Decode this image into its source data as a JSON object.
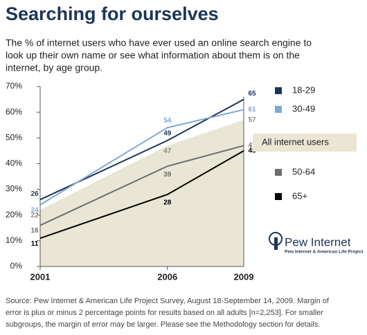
{
  "chart_data": {
    "type": "line",
    "title": "Searching for ourselves",
    "subtitle": [
      "The % of internet users who have ever used an online search engine to",
      "look up their own name or see what information about them is on the",
      "internet, by age group."
    ],
    "x": [
      2001,
      2006,
      2009
    ],
    "xlim": [
      2001,
      2009
    ],
    "xticks": [
      2001,
      2006,
      2009
    ],
    "ylim": [
      0,
      70
    ],
    "yticks": [
      {
        "value": 0,
        "label": "0%"
      },
      {
        "value": 10,
        "label": "10%"
      },
      {
        "value": 20,
        "label": "20%"
      },
      {
        "value": 30,
        "label": "30%"
      },
      {
        "value": 40,
        "label": "40%"
      },
      {
        "value": 50,
        "label": "50%"
      },
      {
        "value": 60,
        "label": "60%"
      },
      {
        "value": 70,
        "label": "70%"
      }
    ],
    "series": [
      {
        "name": "18-29",
        "color": "#1c3557",
        "values": [
          26,
          49,
          65
        ]
      },
      {
        "name": "30-49",
        "color": "#7fa7d1",
        "values": [
          24,
          54,
          61
        ]
      },
      {
        "name": "All internet users",
        "color": "#e9e6d5",
        "style": "area",
        "values": [
          22,
          47,
          57
        ]
      },
      {
        "name": "50-64",
        "color": "#6e6e6e",
        "values": [
          16,
          39,
          47
        ]
      },
      {
        "name": "65+",
        "color": "#000000",
        "values": [
          11,
          28,
          45
        ]
      }
    ],
    "source": [
      "Source: Pew Internet & American Life Project Survey, August 18-September 14, 2009. Margin of",
      "error is plus or minus 2 percentage points for results based on all adults [n=2,253]. For smaller",
      "subgroups, the margin of error may be larger. Please see the Methodology section for details."
    ],
    "logo": {
      "name": "Pew Internet",
      "tagline": "Pew Internet & American Life Project"
    }
  }
}
